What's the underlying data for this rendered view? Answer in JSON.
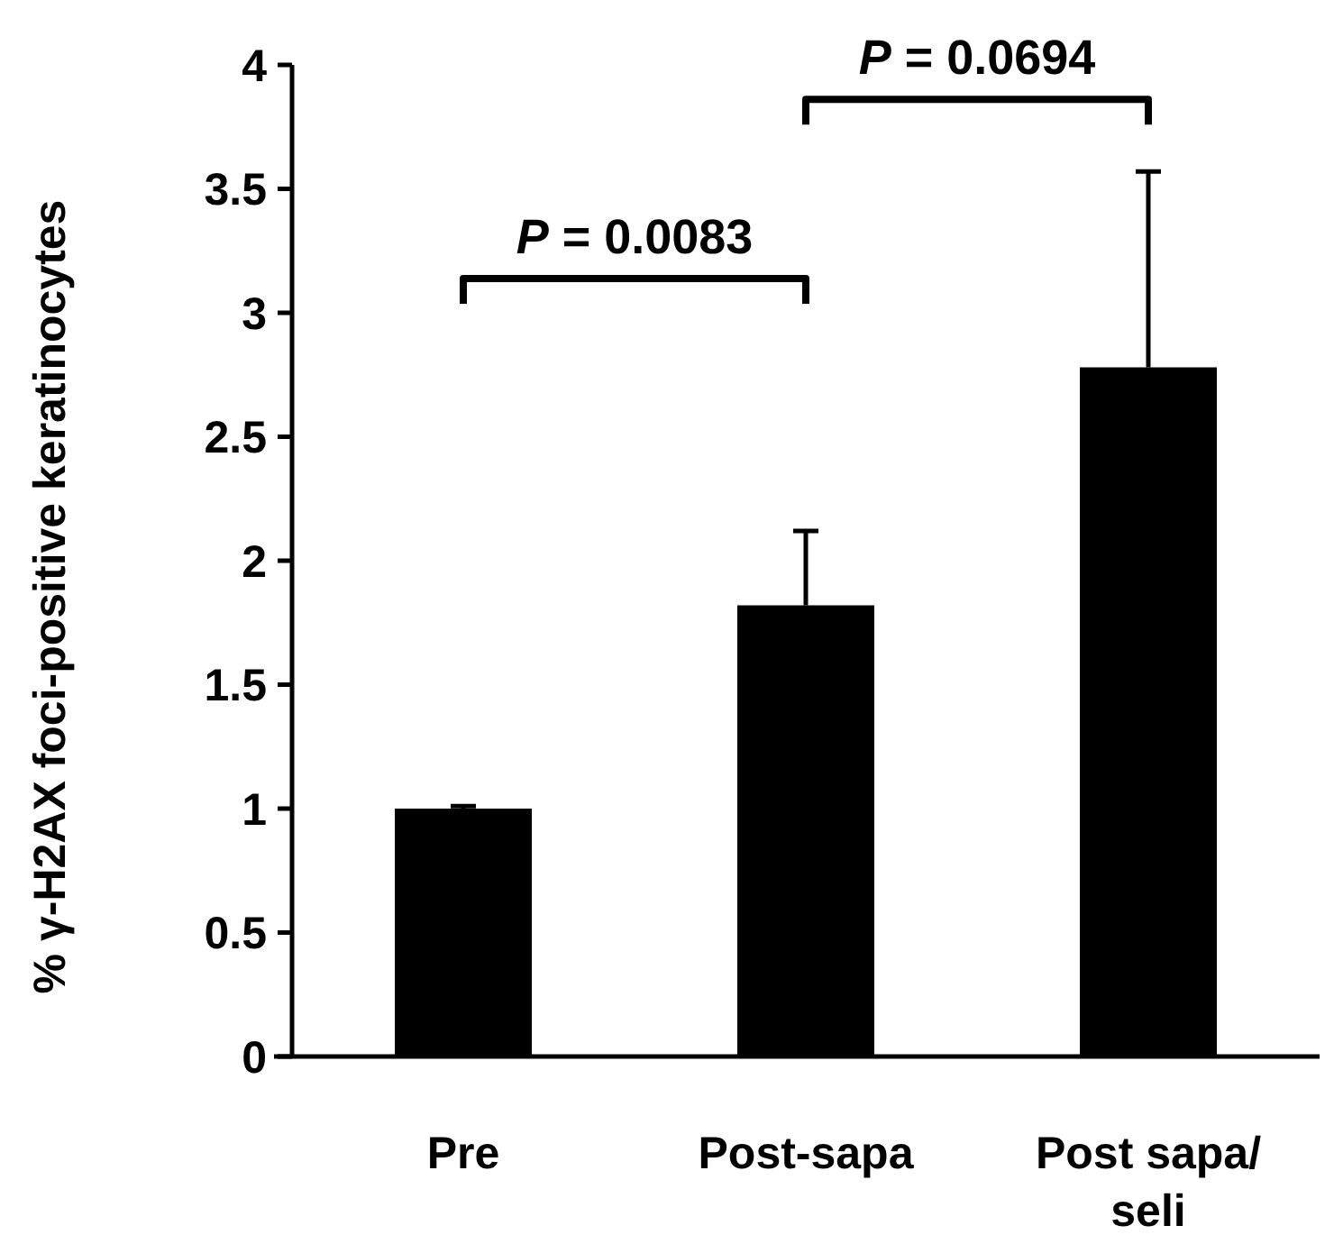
{
  "chart_data": {
    "type": "bar",
    "ylabel": "% γ-H2AX foci-positive keratinocytes",
    "categories": [
      "Pre",
      "Post-sapa",
      "Post sapa/ seli"
    ],
    "values": [
      1.0,
      1.82,
      2.78
    ],
    "color": "#000000",
    "errors": [
      [
        1.0,
        1.01
      ],
      [
        1.82,
        2.12
      ],
      [
        2.78,
        3.57
      ]
    ],
    "ylim": [
      0,
      4
    ],
    "yticks": [
      0,
      {
        "value": 0.5,
        "label": "0.5"
      },
      1,
      {
        "value": 1.5,
        "label": "1.5"
      },
      2,
      {
        "value": 2.5,
        "label": "2.5"
      },
      3,
      {
        "value": 3.5,
        "label": "3.5"
      },
      4
    ],
    "grid": false,
    "annotations": [
      "P = 0.0083",
      "P = 0.0694"
    ]
  }
}
